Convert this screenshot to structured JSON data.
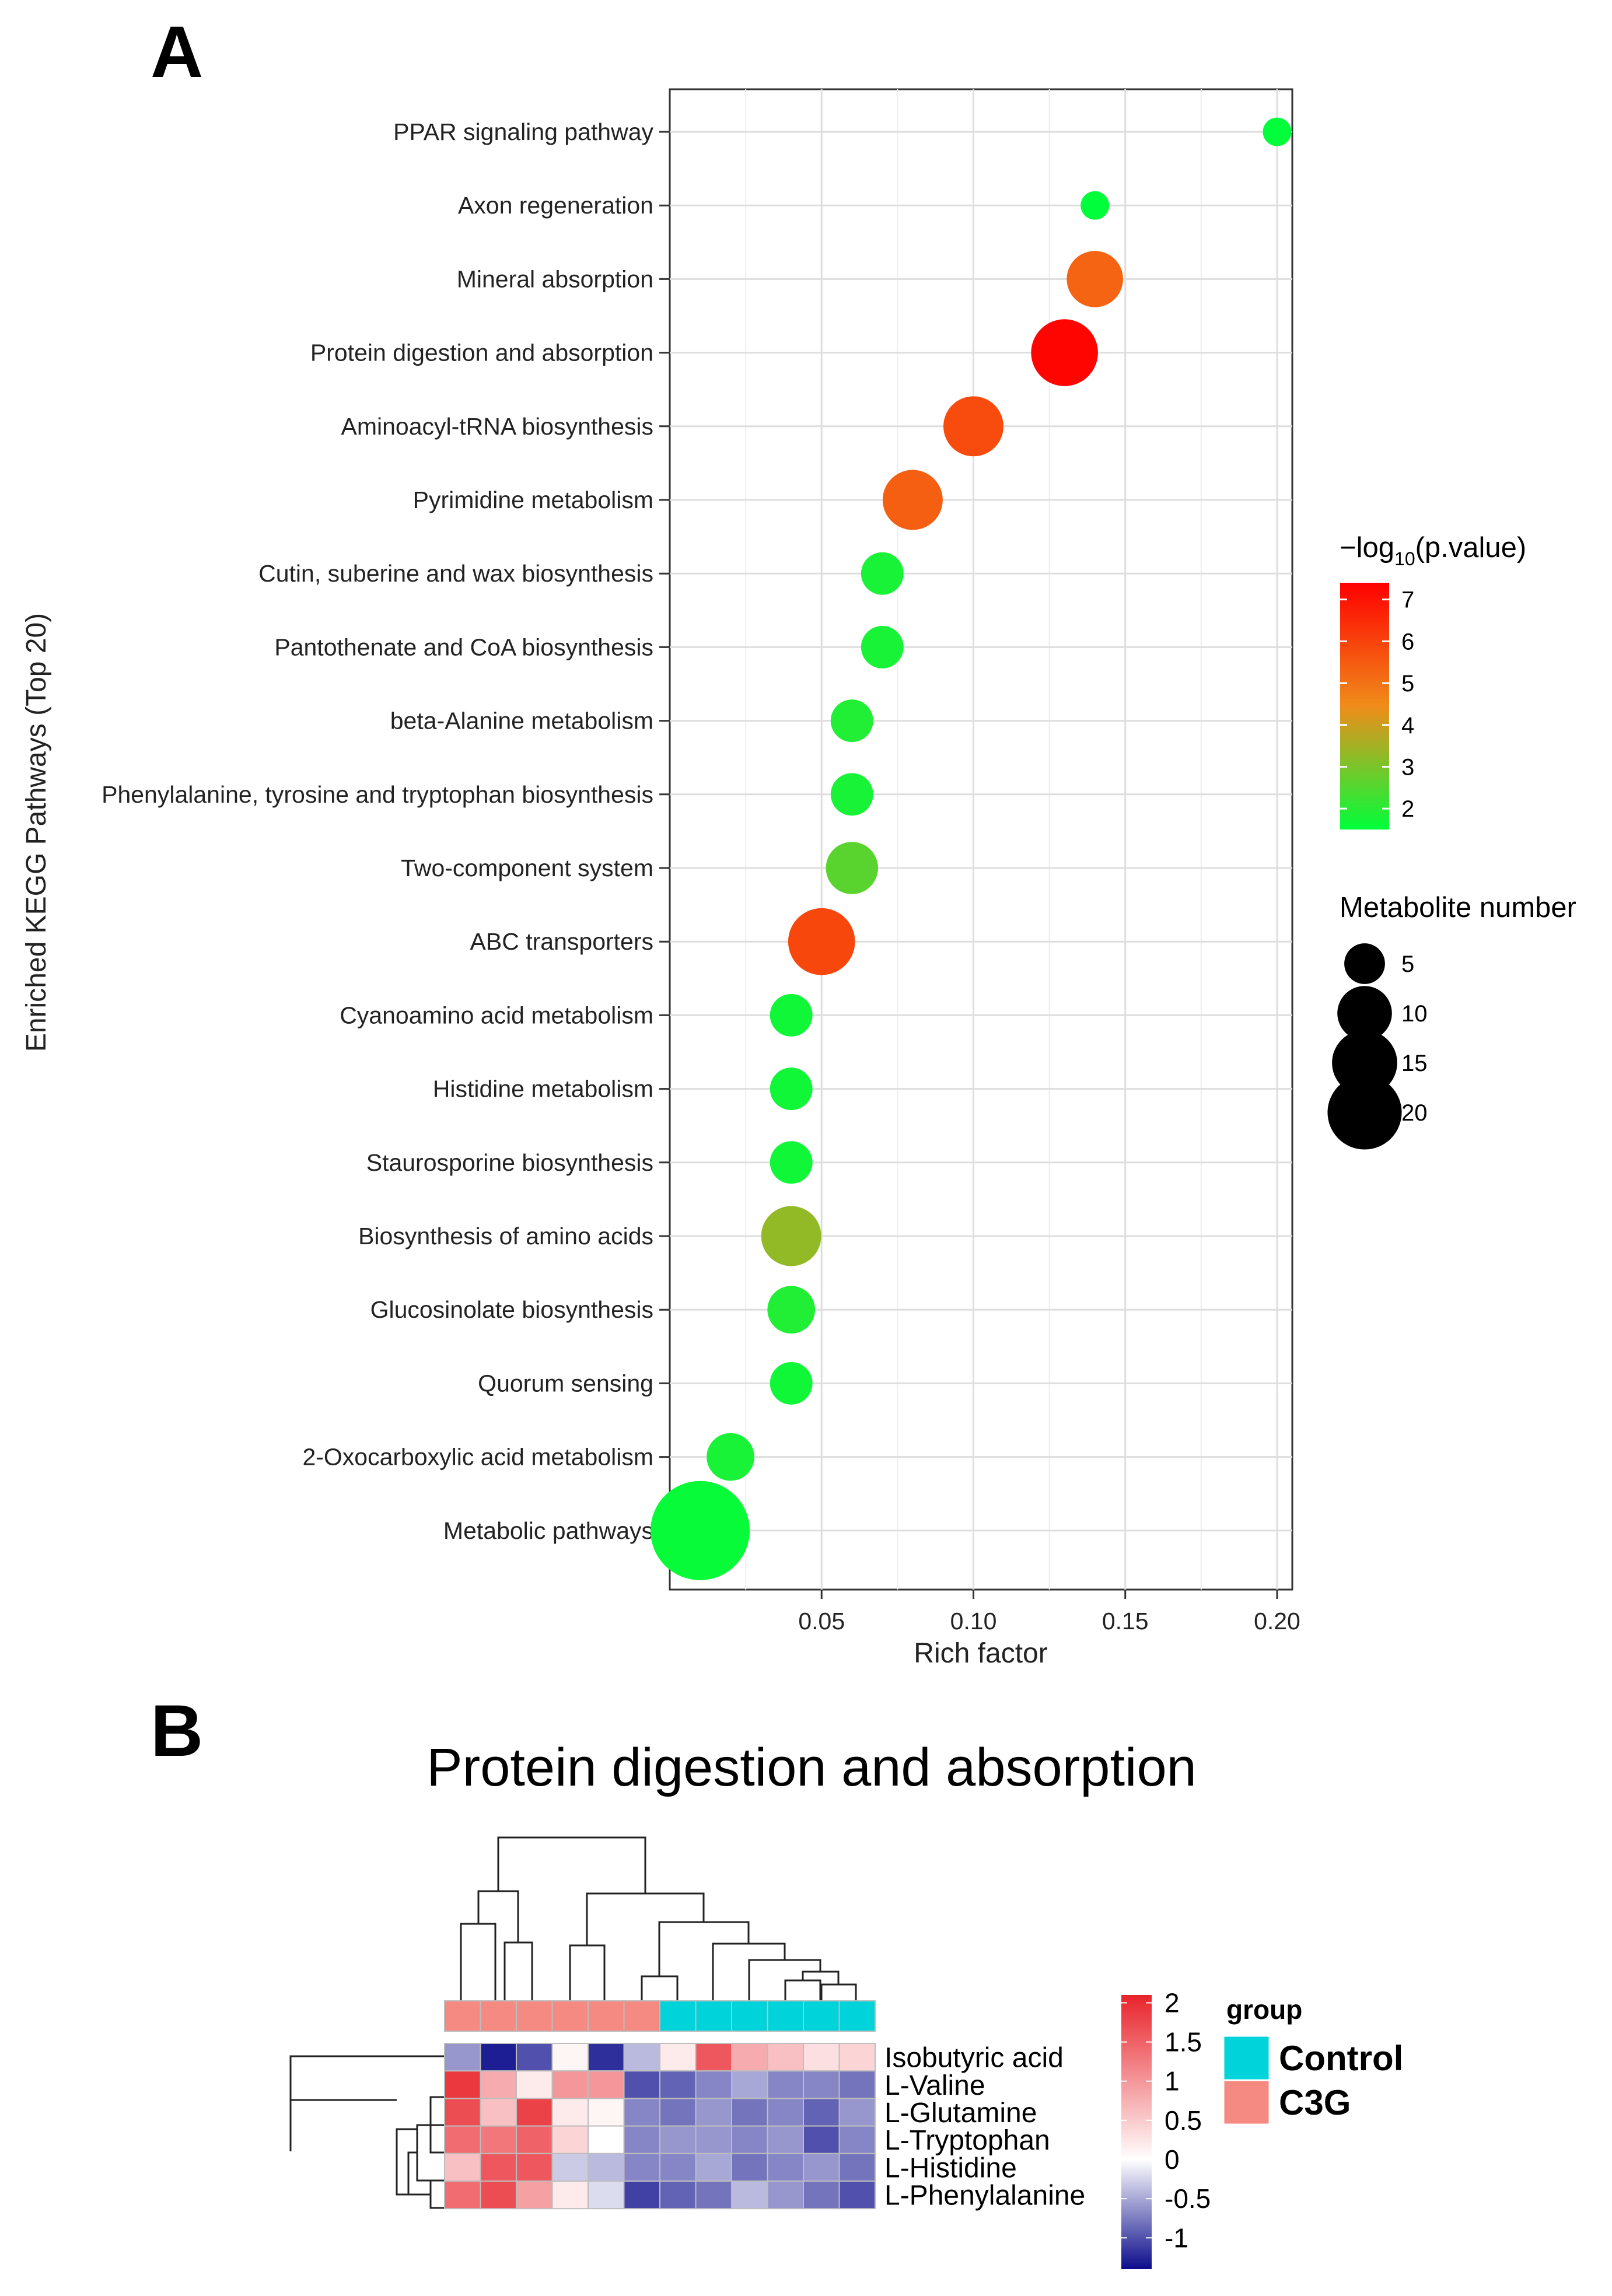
{
  "panelA": {
    "letter": "A",
    "chart_data": {
      "type": "scatter",
      "xlabel": "Rich factor",
      "ylabel": "Enriched KEGG Pathways (Top 20)",
      "xlim": [
        0,
        0.205
      ],
      "xticks": [
        0.05,
        0.1,
        0.15,
        0.2
      ],
      "xtick_labels": [
        "0.05",
        "0.10",
        "0.15",
        "0.20"
      ],
      "grid": true,
      "points": [
        {
          "pathway": "PPAR signaling pathway",
          "rich_factor": 0.2,
          "neg_log10_p": 1.5,
          "metabolite_number": 1
        },
        {
          "pathway": "Axon regeneration",
          "rich_factor": 0.14,
          "neg_log10_p": 1.5,
          "metabolite_number": 1
        },
        {
          "pathway": "Mineral absorption",
          "rich_factor": 0.14,
          "neg_log10_p": 5.3,
          "metabolite_number": 6
        },
        {
          "pathway": "Protein digestion and absorption",
          "rich_factor": 0.13,
          "neg_log10_p": 7.3,
          "metabolite_number": 9
        },
        {
          "pathway": "Aminoacyl-tRNA biosynthesis",
          "rich_factor": 0.1,
          "neg_log10_p": 5.8,
          "metabolite_number": 7
        },
        {
          "pathway": "Pyrimidine metabolism",
          "rich_factor": 0.08,
          "neg_log10_p": 5.4,
          "metabolite_number": 7
        },
        {
          "pathway": "Cutin, suberine and wax biosynthesis",
          "rich_factor": 0.07,
          "neg_log10_p": 1.8,
          "metabolite_number": 3
        },
        {
          "pathway": "Pantothenate and CoA biosynthesis",
          "rich_factor": 0.07,
          "neg_log10_p": 1.8,
          "metabolite_number": 3
        },
        {
          "pathway": "beta-Alanine metabolism",
          "rich_factor": 0.06,
          "neg_log10_p": 1.9,
          "metabolite_number": 3
        },
        {
          "pathway": "Phenylalanine, tyrosine and tryptophan biosynthesis",
          "rich_factor": 0.06,
          "neg_log10_p": 1.8,
          "metabolite_number": 3
        },
        {
          "pathway": "Two-component system",
          "rich_factor": 0.06,
          "neg_log10_p": 2.6,
          "metabolite_number": 5
        },
        {
          "pathway": "ABC transporters",
          "rich_factor": 0.05,
          "neg_log10_p": 5.9,
          "metabolite_number": 9
        },
        {
          "pathway": "Cyanoamino acid metabolism",
          "rich_factor": 0.04,
          "neg_log10_p": 1.7,
          "metabolite_number": 3
        },
        {
          "pathway": "Histidine metabolism",
          "rich_factor": 0.04,
          "neg_log10_p": 1.7,
          "metabolite_number": 3
        },
        {
          "pathway": "Staurosporine biosynthesis",
          "rich_factor": 0.04,
          "neg_log10_p": 1.7,
          "metabolite_number": 3
        },
        {
          "pathway": "Biosynthesis of amino acids",
          "rich_factor": 0.04,
          "neg_log10_p": 3.3,
          "metabolite_number": 7
        },
        {
          "pathway": "Glucosinolate biosynthesis",
          "rich_factor": 0.04,
          "neg_log10_p": 1.9,
          "metabolite_number": 4
        },
        {
          "pathway": "Quorum sensing",
          "rich_factor": 0.04,
          "neg_log10_p": 1.7,
          "metabolite_number": 3
        },
        {
          "pathway": "2-Oxocarboxylic acid metabolism",
          "rich_factor": 0.02,
          "neg_log10_p": 1.8,
          "metabolite_number": 4
        },
        {
          "pathway": "Metabolic pathways",
          "rich_factor": 0.01,
          "neg_log10_p": 1.6,
          "metabolite_number": 22
        }
      ],
      "color_legend": {
        "title_prefix": "−log",
        "title_sub": "10",
        "title_suffix": "(p.value)",
        "range": [
          1.5,
          7.4
        ],
        "ticks": [
          "7",
          "6",
          "5",
          "4",
          "3",
          "2"
        ],
        "low_color": "#00ff3a",
        "mid_color": "#f08c1a",
        "high_color": "#ff0000"
      },
      "size_legend": {
        "title": "Metabolite number",
        "values": [
          5,
          10,
          15,
          20
        ],
        "labels": [
          "5",
          "10",
          "15",
          "20"
        ]
      }
    }
  },
  "panelB": {
    "letter": "B",
    "chart_data": {
      "type": "heatmap",
      "title": "Protein digestion and absorption",
      "rows": [
        "Isobutyric acid",
        "L-Valine",
        "L-Glutamine",
        "L-Tryptophan",
        "L-Histidine",
        "L-Phenylalanine"
      ],
      "column_groups": [
        "C3G",
        "C3G",
        "C3G",
        "C3G",
        "C3G",
        "C3G",
        "Control",
        "Control",
        "Control",
        "Control",
        "Control",
        "Control"
      ],
      "values": [
        [
          -0.6,
          -1.3,
          -1.0,
          0.1,
          -1.2,
          -0.4,
          0.2,
          1.6,
          0.8,
          0.6,
          0.3,
          0.4
        ],
        [
          1.9,
          0.8,
          0.2,
          1.0,
          1.0,
          -1.0,
          -0.9,
          -0.7,
          -0.5,
          -0.7,
          -0.7,
          -0.8
        ],
        [
          1.7,
          0.6,
          1.8,
          0.2,
          0.1,
          -0.7,
          -0.8,
          -0.6,
          -0.8,
          -0.7,
          -0.9,
          -0.6
        ],
        [
          1.4,
          1.3,
          1.5,
          0.4,
          0.0,
          -0.7,
          -0.6,
          -0.6,
          -0.7,
          -0.6,
          -1.0,
          -0.7
        ],
        [
          0.6,
          1.6,
          1.6,
          -0.3,
          -0.4,
          -0.7,
          -0.7,
          -0.5,
          -0.8,
          -0.7,
          -0.6,
          -0.8
        ],
        [
          1.4,
          1.7,
          0.9,
          0.2,
          -0.2,
          -1.1,
          -0.9,
          -0.8,
          -0.4,
          -0.6,
          -0.8,
          -1.0
        ]
      ],
      "colorbar": {
        "range": [
          -1.4,
          2.1
        ],
        "ticks": [
          2,
          1.5,
          1,
          0.5,
          0,
          -0.5,
          -1
        ],
        "tick_labels": [
          "2",
          "1.5",
          "1",
          "0.5",
          "0",
          "-0.5",
          "-1"
        ],
        "low_color": "#0c0c8c",
        "mid_color": "#ffffff",
        "high_color": "#e8232a"
      },
      "group_legend": {
        "title": "group",
        "items": [
          {
            "label": "Control",
            "color": "#00d4da"
          },
          {
            "label": "C3G",
            "color": "#f48a82"
          }
        ]
      }
    }
  }
}
